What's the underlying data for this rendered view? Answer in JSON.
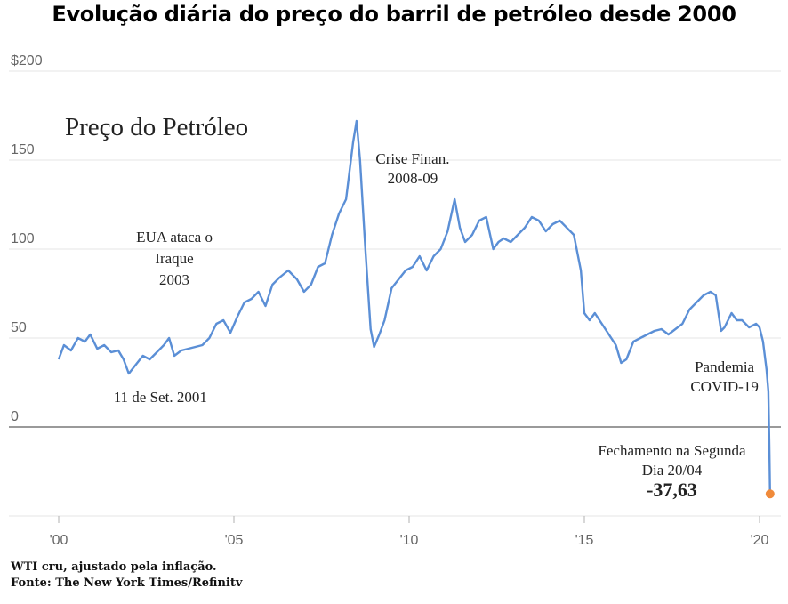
{
  "page_title": "Evolução diária do preço do barril de petróleo desde 2000",
  "chart_data": {
    "type": "line",
    "title": "Preço do Petróleo",
    "xlabel": "",
    "ylabel": "",
    "xlim": [
      2000,
      2020.4
    ],
    "ylim": [
      -50,
      200
    ],
    "y_ticks": [
      {
        "value": 200,
        "label": "$200"
      },
      {
        "value": 150,
        "label": "150"
      },
      {
        "value": 100,
        "label": "100"
      },
      {
        "value": 50,
        "label": "50"
      },
      {
        "value": 0,
        "label": "0"
      }
    ],
    "x_ticks": [
      {
        "value": 2000,
        "label": "'00"
      },
      {
        "value": 2005,
        "label": "'05"
      },
      {
        "value": 2010,
        "label": "'10"
      },
      {
        "value": 2015,
        "label": "'15"
      },
      {
        "value": 2020,
        "label": "'20"
      }
    ],
    "grid": true,
    "line_color": "#5b8fd6",
    "marker_color": "#f08a3a",
    "series": [
      {
        "x": [
          2000.0,
          2000.15,
          2000.35,
          2000.55,
          2000.75,
          2000.9,
          2001.1,
          2001.3,
          2001.5,
          2001.7,
          2001.85,
          2002.0,
          2002.2,
          2002.4,
          2002.6,
          2002.8,
          2003.0,
          2003.15,
          2003.3,
          2003.5,
          2003.7,
          2003.9,
          2004.1,
          2004.3,
          2004.5,
          2004.7,
          2004.9,
          2005.1,
          2005.3,
          2005.5,
          2005.7,
          2005.9,
          2006.1,
          2006.3,
          2006.55,
          2006.8,
          2007.0,
          2007.2,
          2007.4,
          2007.6,
          2007.8,
          2008.0,
          2008.2,
          2008.4,
          2008.5,
          2008.6,
          2008.75,
          2008.9,
          2009.0,
          2009.15,
          2009.3,
          2009.5,
          2009.7,
          2009.9,
          2010.1,
          2010.3,
          2010.5,
          2010.7,
          2010.9,
          2011.1,
          2011.3,
          2011.45,
          2011.6,
          2011.8,
          2012.0,
          2012.2,
          2012.4,
          2012.55,
          2012.7,
          2012.9,
          2013.1,
          2013.3,
          2013.5,
          2013.7,
          2013.9,
          2014.1,
          2014.3,
          2014.5,
          2014.7,
          2014.9,
          2015.0,
          2015.15,
          2015.3,
          2015.5,
          2015.7,
          2015.9,
          2016.05,
          2016.2,
          2016.4,
          2016.6,
          2016.8,
          2017.0,
          2017.2,
          2017.4,
          2017.6,
          2017.8,
          2018.0,
          2018.2,
          2018.4,
          2018.6,
          2018.75,
          2018.9,
          2019.0,
          2019.2,
          2019.35,
          2019.5,
          2019.7,
          2019.9,
          2020.0,
          2020.1,
          2020.2,
          2020.25,
          2020.28,
          2020.3
        ],
        "y": [
          38,
          46,
          43,
          50,
          48,
          52,
          44,
          46,
          42,
          43,
          38,
          30,
          35,
          40,
          38,
          42,
          46,
          50,
          40,
          43,
          44,
          45,
          46,
          50,
          58,
          60,
          53,
          62,
          70,
          72,
          76,
          68,
          80,
          84,
          88,
          83,
          76,
          80,
          90,
          92,
          108,
          120,
          128,
          160,
          172,
          150,
          100,
          55,
          45,
          52,
          60,
          78,
          83,
          88,
          90,
          96,
          88,
          96,
          100,
          110,
          128,
          112,
          104,
          108,
          116,
          118,
          100,
          104,
          106,
          104,
          108,
          112,
          118,
          116,
          110,
          114,
          116,
          112,
          108,
          88,
          64,
          60,
          64,
          58,
          52,
          46,
          36,
          38,
          48,
          50,
          52,
          54,
          55,
          52,
          55,
          58,
          66,
          70,
          74,
          76,
          74,
          54,
          56,
          64,
          60,
          60,
          56,
          58,
          56,
          48,
          32,
          20,
          -10,
          -37.63
        ]
      }
    ],
    "annotations": [
      {
        "text": "EUA ataca o",
        "x": 2003.3,
        "y": 104
      },
      {
        "text": "Iraque",
        "x": 2003.3,
        "y": 92
      },
      {
        "text": "2003",
        "x": 2003.3,
        "y": 80
      },
      {
        "text": "11 de Set. 2001",
        "x": 2002.9,
        "y": 14
      },
      {
        "text": "Crise Finan.",
        "x": 2010.1,
        "y": 148
      },
      {
        "text": "2008-09",
        "x": 2010.1,
        "y": 137
      },
      {
        "text": "Pandemia",
        "x": 2019.0,
        "y": 31
      },
      {
        "text": "COVID-19",
        "x": 2019.0,
        "y": 20
      },
      {
        "text": "Fechamento na Segunda",
        "x": 2017.5,
        "y": -16
      },
      {
        "text": "Dia 20/04",
        "x": 2017.5,
        "y": -27
      },
      {
        "text": "-37,63",
        "x": 2017.5,
        "y": -39
      }
    ]
  },
  "footnote": {
    "line1": "WTI cru, ajustado pela inflação.",
    "line2": "Fonte: The New York Times/Refinitv"
  }
}
